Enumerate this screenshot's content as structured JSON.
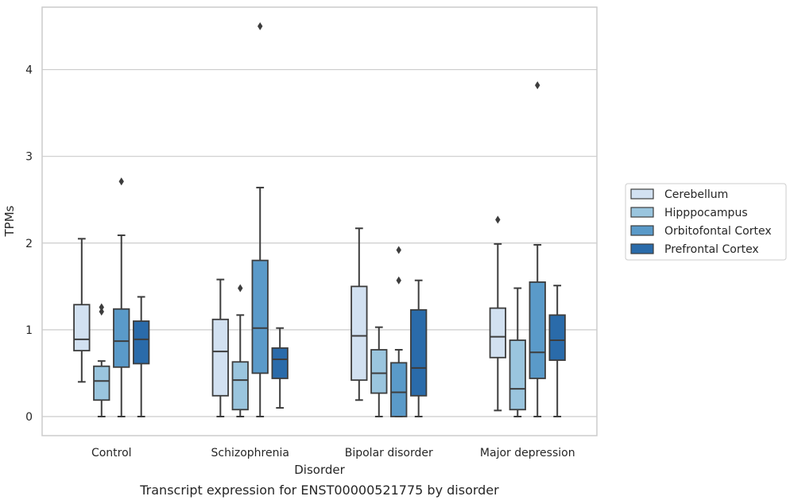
{
  "chart_data": {
    "type": "box",
    "caption": "Transcript expression for ENST00000521775 by disorder",
    "xlabel": "Disorder",
    "ylabel": "TPMs",
    "ylim": [
      -0.22,
      4.72
    ],
    "yticks": [
      0,
      1,
      2,
      3,
      4
    ],
    "grid": true,
    "legend_position": "right",
    "categories": [
      "Control",
      "Schizophrenia",
      "Bipolar disorder",
      "Major depression"
    ],
    "series": [
      {
        "name": "Cerebellum",
        "color": "#d2e1f1",
        "boxes": [
          {
            "whisker_low": 0.4,
            "q1": 0.76,
            "median": 0.89,
            "q3": 1.29,
            "whisker_high": 2.05,
            "outliers": []
          },
          {
            "whisker_low": 0.0,
            "q1": 0.24,
            "median": 0.75,
            "q3": 1.12,
            "whisker_high": 1.58,
            "outliers": []
          },
          {
            "whisker_low": 0.19,
            "q1": 0.42,
            "median": 0.93,
            "q3": 1.5,
            "whisker_high": 2.17,
            "outliers": []
          },
          {
            "whisker_low": 0.07,
            "q1": 0.68,
            "median": 0.92,
            "q3": 1.25,
            "whisker_high": 1.99,
            "outliers": [
              2.27
            ]
          }
        ]
      },
      {
        "name": "Hipppocampus",
        "color": "#9ac5de",
        "boxes": [
          {
            "whisker_low": 0.0,
            "q1": 0.19,
            "median": 0.41,
            "q3": 0.58,
            "whisker_high": 0.64,
            "outliers": [
              1.21,
              1.26
            ]
          },
          {
            "whisker_low": 0.0,
            "q1": 0.08,
            "median": 0.42,
            "q3": 0.63,
            "whisker_high": 1.17,
            "outliers": [
              1.48
            ]
          },
          {
            "whisker_low": 0.0,
            "q1": 0.27,
            "median": 0.5,
            "q3": 0.77,
            "whisker_high": 1.03,
            "outliers": []
          },
          {
            "whisker_low": 0.0,
            "q1": 0.08,
            "median": 0.32,
            "q3": 0.88,
            "whisker_high": 1.48,
            "outliers": []
          }
        ]
      },
      {
        "name": "Orbitofontal Cortex",
        "color": "#5a9ac9",
        "boxes": [
          {
            "whisker_low": 0.0,
            "q1": 0.57,
            "median": 0.87,
            "q3": 1.24,
            "whisker_high": 2.09,
            "outliers": [
              2.71
            ]
          },
          {
            "whisker_low": 0.0,
            "q1": 0.5,
            "median": 1.02,
            "q3": 1.8,
            "whisker_high": 2.64,
            "outliers": [
              4.5
            ]
          },
          {
            "whisker_low": 0.0,
            "q1": 0.0,
            "median": 0.28,
            "q3": 0.62,
            "whisker_high": 0.77,
            "outliers": [
              1.57,
              1.92
            ]
          },
          {
            "whisker_low": 0.0,
            "q1": 0.44,
            "median": 0.74,
            "q3": 1.55,
            "whisker_high": 1.98,
            "outliers": [
              3.82
            ]
          }
        ]
      },
      {
        "name": "Prefrontal Cortex",
        "color": "#2a6baa",
        "boxes": [
          {
            "whisker_low": 0.0,
            "q1": 0.61,
            "median": 0.89,
            "q3": 1.1,
            "whisker_high": 1.38,
            "outliers": []
          },
          {
            "whisker_low": 0.1,
            "q1": 0.44,
            "median": 0.66,
            "q3": 0.79,
            "whisker_high": 1.02,
            "outliers": []
          },
          {
            "whisker_low": 0.0,
            "q1": 0.24,
            "median": 0.56,
            "q3": 1.23,
            "whisker_high": 1.57,
            "outliers": []
          },
          {
            "whisker_low": 0.0,
            "q1": 0.65,
            "median": 0.88,
            "q3": 1.17,
            "whisker_high": 1.51,
            "outliers": []
          }
        ]
      }
    ]
  }
}
